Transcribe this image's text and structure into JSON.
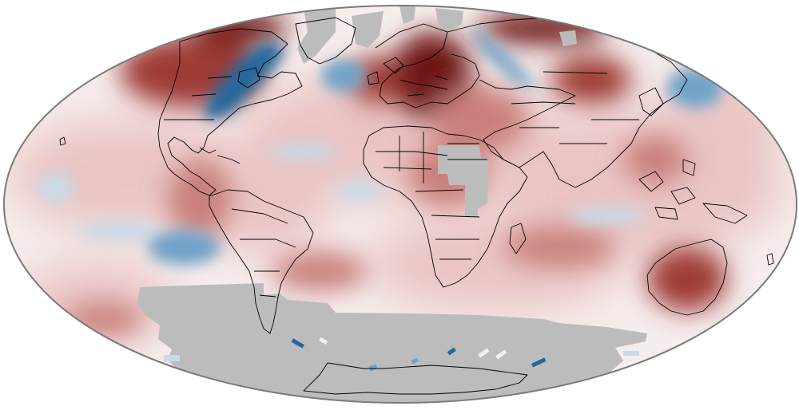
{
  "map": {
    "projection": "mollweide",
    "colors": {
      "ocean_neutral": "#f6eded",
      "warm_light": "#e9c4c2",
      "warm_mid": "#c9807c",
      "warm_strong": "#9e3a36",
      "warm_extreme": "#6e1416",
      "cool_light": "#c6dbea",
      "cool_mid": "#6fa3c8",
      "cool_strong": "#24679c",
      "no_data": "#bcbcbc",
      "outline": "#7a7a7a",
      "coast": "#000000"
    },
    "anomaly_regions": [
      {
        "name": "north-america-warm",
        "level": "warm_strong"
      },
      {
        "name": "canada-cool",
        "level": "cool_strong"
      },
      {
        "name": "north-atlantic-cool",
        "level": "cool_mid"
      },
      {
        "name": "europe-warm",
        "level": "warm_extreme"
      },
      {
        "name": "siberia-cool",
        "level": "cool_mid"
      },
      {
        "name": "east-russia-warm",
        "level": "warm_extreme"
      },
      {
        "name": "north-pacific-cool",
        "level": "cool_mid"
      },
      {
        "name": "tropical-pacific-cool",
        "level": "cool_light"
      },
      {
        "name": "south-pacific-cool",
        "level": "cool_mid"
      },
      {
        "name": "south-atlantic-warm",
        "level": "warm_mid"
      },
      {
        "name": "australia-warm",
        "level": "warm_strong"
      },
      {
        "name": "indian-ocean-warm",
        "level": "warm_mid"
      }
    ],
    "missing_data_regions": [
      "antarctica",
      "central-africa",
      "arctic"
    ]
  }
}
